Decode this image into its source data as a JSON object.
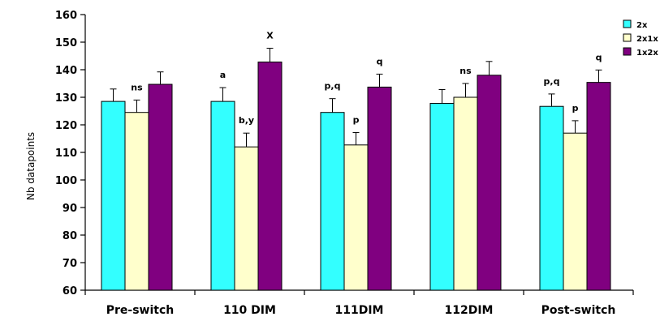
{
  "chart_data": {
    "type": "bar",
    "title": "",
    "xlabel": "",
    "ylabel": "Nb datapoints",
    "ylim": [
      60,
      160
    ],
    "yticks": [
      60,
      70,
      80,
      90,
      100,
      110,
      120,
      130,
      140,
      150,
      160
    ],
    "categories": [
      "Pre-switch",
      "110 DIM",
      "111DIM",
      "112DIM",
      "Post-switch"
    ],
    "series": [
      {
        "name": "2x",
        "color": "#33ffff",
        "values": [
          128.5,
          128.5,
          124.5,
          127.8,
          126.7
        ],
        "errors": [
          4.5,
          5.0,
          5.0,
          5.0,
          4.5
        ]
      },
      {
        "name": "2x1x",
        "color": "#ffffcc",
        "values": [
          124.5,
          112.0,
          112.7,
          130.0,
          117.0
        ],
        "errors": [
          4.5,
          5.0,
          4.5,
          5.0,
          4.5
        ]
      },
      {
        "name": "1x2x",
        "color": "#800080",
        "values": [
          134.7,
          142.8,
          133.7,
          138.0,
          135.4
        ],
        "errors": [
          4.5,
          5.0,
          4.7,
          5.0,
          4.5
        ]
      }
    ],
    "annotations": [
      {
        "text": "ns",
        "category": 0,
        "series": 1
      },
      {
        "text": "a",
        "category": 1,
        "series": 0
      },
      {
        "text": "b,y",
        "category": 1,
        "series": 1
      },
      {
        "text": "X",
        "category": 1,
        "series": 2
      },
      {
        "text": "p,q",
        "category": 2,
        "series": 0
      },
      {
        "text": "p",
        "category": 2,
        "series": 1
      },
      {
        "text": "q",
        "category": 2,
        "series": 2
      },
      {
        "text": "ns",
        "category": 3,
        "series": 1
      },
      {
        "text": "p,q",
        "category": 4,
        "series": 0
      },
      {
        "text": "p",
        "category": 4,
        "series": 1
      },
      {
        "text": "q",
        "category": 4,
        "series": 2
      }
    ],
    "legend_position": "top-right",
    "grid": false
  }
}
